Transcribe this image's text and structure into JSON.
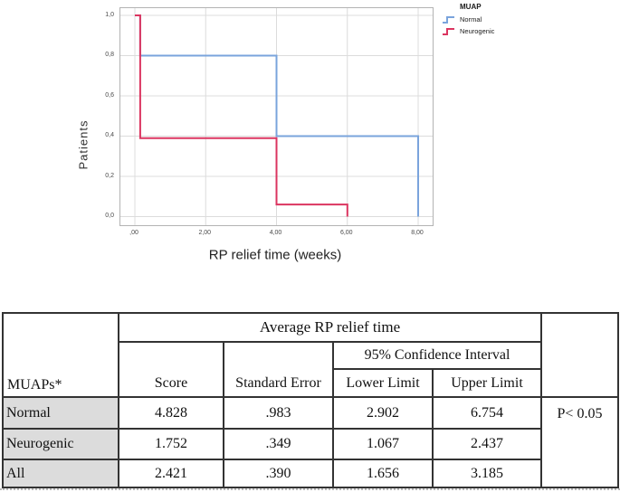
{
  "chart": {
    "y_title": "Patients",
    "x_title": "RP relief time (weeks)",
    "legend_title": "MUAP"
  },
  "chart_data": {
    "type": "line",
    "subtype": "step-survival",
    "title": "",
    "xlabel": "RP relief time (weeks)",
    "ylabel": "Patients",
    "xlim": [
      -0.41,
      8.41
    ],
    "ylim": [
      -0.04,
      1.04
    ],
    "grid": true,
    "legend_position": "top-right-outside",
    "legend_title": "MUAP",
    "x_ticks": [
      0,
      2,
      4,
      6,
      8
    ],
    "x_tick_labels": [
      ",00",
      "2,00",
      "4,00",
      "6,00",
      "8,00"
    ],
    "y_ticks": [
      0,
      0.2,
      0.4,
      0.6,
      0.8,
      1.0
    ],
    "y_tick_labels": [
      "0,0",
      "0,2",
      "0,4",
      "0,6",
      "0,8",
      "1,0"
    ],
    "series": [
      {
        "name": "Normal",
        "color": "#7AA4DC",
        "points": [
          [
            0,
            1.0
          ],
          [
            0.15,
            1.0
          ],
          [
            0.15,
            0.8
          ],
          [
            4,
            0.8
          ],
          [
            4,
            0.4
          ],
          [
            8,
            0.4
          ],
          [
            8,
            0.0
          ]
        ]
      },
      {
        "name": "Neurogenic",
        "color": "#DB3560",
        "points": [
          [
            0,
            1.0
          ],
          [
            0.15,
            1.0
          ],
          [
            0.15,
            0.39
          ],
          [
            4,
            0.39
          ],
          [
            4,
            0.06
          ],
          [
            6,
            0.06
          ],
          [
            6,
            0.0
          ]
        ]
      }
    ]
  },
  "table": {
    "corner_label": "MUAPs*",
    "group_header": "Average RP relief time",
    "ci_header": "95% Confidence Interval",
    "col_headers": {
      "score": "Score",
      "se": "Standard Error",
      "lower": "Lower Limit",
      "upper": "Upper Limit"
    },
    "p_value": "P< 0.05",
    "rows": [
      {
        "label": "Normal",
        "score": "4.828",
        "se": ".983",
        "lower": "2.902",
        "upper": "6.754"
      },
      {
        "label": "Neurogenic",
        "score": "1.752",
        "se": ".349",
        "lower": "1.067",
        "upper": "2.437"
      },
      {
        "label": "All",
        "score": "2.421",
        "se": ".390",
        "lower": "1.656",
        "upper": "3.185"
      }
    ]
  }
}
